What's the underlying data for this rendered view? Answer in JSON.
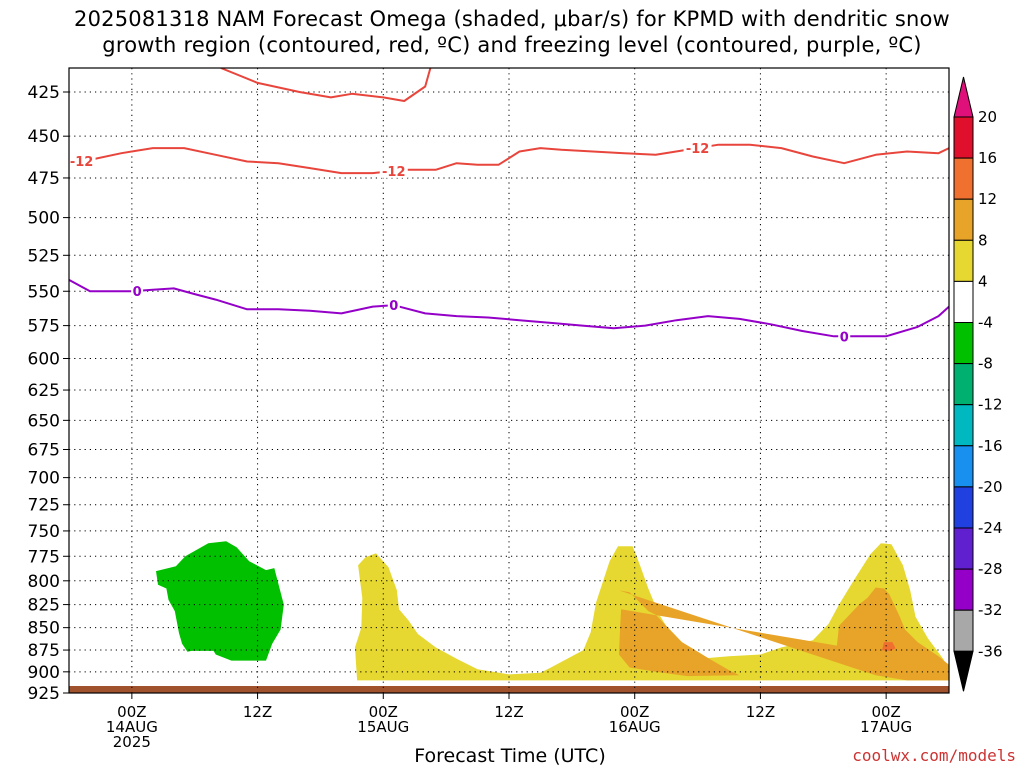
{
  "title_lines": [
    "2025081318 NAM Forecast Omega (shaded, μbar/s) for KPMD with dendritic snow",
    "growth region (contoured, red, ºC) and freezing level (contoured, purple, ºC)"
  ],
  "xlabel": "Forecast Time (UTC)",
  "credit": "coolwx.com/models",
  "colors": {
    "temp_contour": "#e8453c",
    "freeze_contour": "#9400c8",
    "ground": "#a0522d",
    "grid": "#000000"
  },
  "chart_data": {
    "type": "heatmap",
    "title": "2025081318 NAM Forecast Omega (shaded, μbar/s) for KPMD with dendritic snow growth region (contoured, red, ºC) and freezing level (contoured, purple, ºC)",
    "xlabel": "Forecast Time (UTC)",
    "ylabel": "",
    "y_scale": "log-pressure",
    "y_inverted": true,
    "ylim": [
      925,
      412
    ],
    "xlim_hours": [
      -6,
      78
    ],
    "x_ticks": [
      {
        "hour": 0,
        "lines": [
          "00Z",
          "14AUG",
          "2025"
        ]
      },
      {
        "hour": 12,
        "lines": [
          "12Z"
        ]
      },
      {
        "hour": 24,
        "lines": [
          "00Z",
          "15AUG"
        ]
      },
      {
        "hour": 36,
        "lines": [
          "12Z"
        ]
      },
      {
        "hour": 48,
        "lines": [
          "00Z",
          "16AUG"
        ]
      },
      {
        "hour": 60,
        "lines": [
          "12Z"
        ]
      },
      {
        "hour": 72,
        "lines": [
          "00Z",
          "17AUG"
        ]
      }
    ],
    "y_ticks": [
      425,
      450,
      475,
      500,
      525,
      550,
      575,
      600,
      625,
      650,
      675,
      700,
      725,
      750,
      775,
      800,
      825,
      850,
      875,
      900,
      925
    ],
    "grid": true,
    "colorbar": {
      "labels": [
        20,
        16,
        12,
        8,
        4,
        -4,
        -8,
        -12,
        -16,
        -20,
        -24,
        -28,
        -32,
        -36
      ],
      "bins": [
        {
          "color": "#e0102c"
        },
        {
          "color": "#f07030"
        },
        {
          "color": "#e8a428"
        },
        {
          "color": "#e6d830"
        },
        {
          "color": "#ffffff"
        },
        {
          "color": "#00c000"
        },
        {
          "color": "#00b070"
        },
        {
          "color": "#00b8c0"
        },
        {
          "color": "#1890f0"
        },
        {
          "color": "#2040e0"
        },
        {
          "color": "#6020d0"
        },
        {
          "color": "#9400c8"
        },
        {
          "color": "#a8a8a8"
        }
      ],
      "top_arrow_color": "#e0107a",
      "bottom_arrow_color": "#000000"
    },
    "contours": [
      {
        "kind": "temperature",
        "label": "-12",
        "label_hours": [
          -4.8,
          25,
          54
        ],
        "points": [
          [
            -6,
            466
          ],
          [
            -4,
            464
          ],
          [
            -1,
            460
          ],
          [
            2,
            457
          ],
          [
            5,
            457
          ],
          [
            8,
            461
          ],
          [
            11,
            465
          ],
          [
            14,
            466
          ],
          [
            17,
            469
          ],
          [
            20,
            472
          ],
          [
            23,
            472
          ],
          [
            26,
            470
          ],
          [
            29,
            470
          ],
          [
            31,
            466
          ],
          [
            33,
            467
          ],
          [
            35,
            467
          ],
          [
            37,
            459
          ],
          [
            39,
            457
          ],
          [
            41,
            458
          ],
          [
            44,
            459
          ],
          [
            47,
            460
          ],
          [
            50,
            461
          ],
          [
            53,
            458
          ],
          [
            56,
            455
          ],
          [
            59,
            455
          ],
          [
            62,
            457
          ],
          [
            65,
            462
          ],
          [
            68,
            466
          ],
          [
            71,
            461
          ],
          [
            74,
            459
          ],
          [
            77,
            460
          ],
          [
            78,
            457
          ]
        ]
      },
      {
        "kind": "temperature",
        "label": "",
        "label_hours": [],
        "points": [
          [
            8.5,
            412
          ],
          [
            12,
            420
          ],
          [
            16,
            425
          ],
          [
            19,
            428
          ],
          [
            21,
            426
          ],
          [
            24,
            428
          ],
          [
            26,
            430
          ],
          [
            28,
            422
          ],
          [
            28.5,
            412
          ]
        ]
      },
      {
        "kind": "freezing",
        "label": "0",
        "label_hours": [
          0.5,
          25,
          68
        ],
        "points": [
          [
            -6,
            542
          ],
          [
            -4,
            550
          ],
          [
            -2,
            550
          ],
          [
            0,
            550
          ],
          [
            2,
            549
          ],
          [
            4,
            548
          ],
          [
            6,
            552
          ],
          [
            8,
            556
          ],
          [
            11,
            563
          ],
          [
            14,
            563
          ],
          [
            17,
            564
          ],
          [
            20,
            566
          ],
          [
            23,
            561
          ],
          [
            25,
            560
          ],
          [
            28,
            566
          ],
          [
            31,
            568
          ],
          [
            34,
            569
          ],
          [
            37,
            571
          ],
          [
            40,
            573
          ],
          [
            43,
            575
          ],
          [
            46,
            577
          ],
          [
            49,
            575
          ],
          [
            52,
            571
          ],
          [
            55,
            568
          ],
          [
            58,
            570
          ],
          [
            61,
            574
          ],
          [
            64,
            579
          ],
          [
            67,
            583
          ],
          [
            70,
            583
          ],
          [
            72,
            583
          ],
          [
            75,
            576
          ],
          [
            77,
            568
          ],
          [
            78,
            561
          ]
        ]
      }
    ],
    "shaded_regions": [
      {
        "omega_range": [
          -8,
          -4
        ],
        "color": "#00c000",
        "points": [
          [
            2.3,
            790
          ],
          [
            4.2,
            785
          ],
          [
            5.1,
            775
          ],
          [
            7.3,
            762
          ],
          [
            9,
            760
          ],
          [
            10,
            766
          ],
          [
            11.2,
            780
          ],
          [
            12.8,
            789
          ],
          [
            13.6,
            787
          ],
          [
            14.5,
            825
          ],
          [
            14.2,
            852
          ],
          [
            13.4,
            868
          ],
          [
            12.8,
            887
          ],
          [
            9.5,
            887
          ],
          [
            8,
            880
          ],
          [
            7.8,
            876
          ],
          [
            5.7,
            876
          ],
          [
            5.3,
            877
          ],
          [
            4.8,
            868
          ],
          [
            4.5,
            856
          ],
          [
            4.1,
            832
          ],
          [
            3.5,
            820
          ],
          [
            3.3,
            808
          ],
          [
            2.5,
            804
          ]
        ]
      },
      {
        "omega_range": [
          4,
          8
        ],
        "color": "#e6d830",
        "points": [
          [
            21.6,
            784
          ],
          [
            22.3,
            776
          ],
          [
            23.3,
            772
          ],
          [
            24.5,
            786
          ],
          [
            25.3,
            810
          ],
          [
            25.5,
            830
          ],
          [
            26.4,
            842
          ],
          [
            27.3,
            857
          ],
          [
            29,
            872
          ],
          [
            31,
            885
          ],
          [
            33,
            897
          ],
          [
            36,
            903
          ],
          [
            39,
            901
          ],
          [
            40,
            895
          ],
          [
            43.1,
            875
          ],
          [
            43.8,
            855
          ],
          [
            44.3,
            823
          ],
          [
            45.6,
            780
          ],
          [
            46.4,
            765
          ],
          [
            47.8,
            765
          ],
          [
            48.5,
            784
          ],
          [
            49.3,
            808
          ],
          [
            50.3,
            835
          ],
          [
            51,
            848
          ],
          [
            52.5,
            866
          ],
          [
            55,
            884
          ],
          [
            57,
            882
          ],
          [
            60,
            880
          ],
          [
            62,
            872
          ],
          [
            65,
            864
          ],
          [
            66.5,
            846
          ],
          [
            67.5,
            825
          ],
          [
            69,
            798
          ],
          [
            70.5,
            773
          ],
          [
            71.5,
            762
          ],
          [
            72.5,
            763
          ],
          [
            73.6,
            784
          ],
          [
            74.3,
            810
          ],
          [
            74.8,
            838
          ],
          [
            76,
            862
          ],
          [
            77.5,
            886
          ],
          [
            78,
            910
          ],
          [
            21.5,
            910
          ],
          [
            21.3,
            872
          ],
          [
            21.9,
            850
          ],
          [
            22,
            818
          ]
        ]
      },
      {
        "omega_range": [
          8,
          12
        ],
        "color": "#e8a428",
        "points": [
          [
            46.5,
            810
          ],
          [
            47.5,
            812
          ],
          [
            48.6,
            824
          ],
          [
            49.3,
            832
          ],
          [
            50,
            836
          ],
          [
            51,
            848
          ],
          [
            52.5,
            866
          ],
          [
            55,
            884
          ],
          [
            57,
            898
          ],
          [
            58,
            904
          ],
          [
            53,
            905
          ],
          [
            50,
            900
          ],
          [
            47.5,
            895
          ],
          [
            46.5,
            880
          ],
          [
            46.6,
            852
          ],
          [
            46.7,
            830
          ],
          [
            67.3,
            870
          ],
          [
            67.5,
            848
          ],
          [
            68.5,
            836
          ],
          [
            69.5,
            824
          ],
          [
            70.2,
            818
          ],
          [
            71,
            807
          ],
          [
            71.8,
            808
          ],
          [
            72.3,
            814
          ],
          [
            73.3,
            838
          ],
          [
            73.8,
            852
          ],
          [
            75,
            866
          ],
          [
            77,
            882
          ],
          [
            78,
            892
          ],
          [
            78,
            910
          ],
          [
            74,
            910
          ],
          [
            71,
            904
          ],
          [
            69,
            896
          ]
        ]
      },
      {
        "omega_range": [
          12,
          16
        ],
        "color": "#f07030",
        "points": [
          [
            71.8,
            866
          ],
          [
            72.6,
            866
          ],
          [
            72.9,
            873
          ],
          [
            72.4,
            876
          ],
          [
            71.6,
            875
          ]
        ]
      }
    ]
  }
}
